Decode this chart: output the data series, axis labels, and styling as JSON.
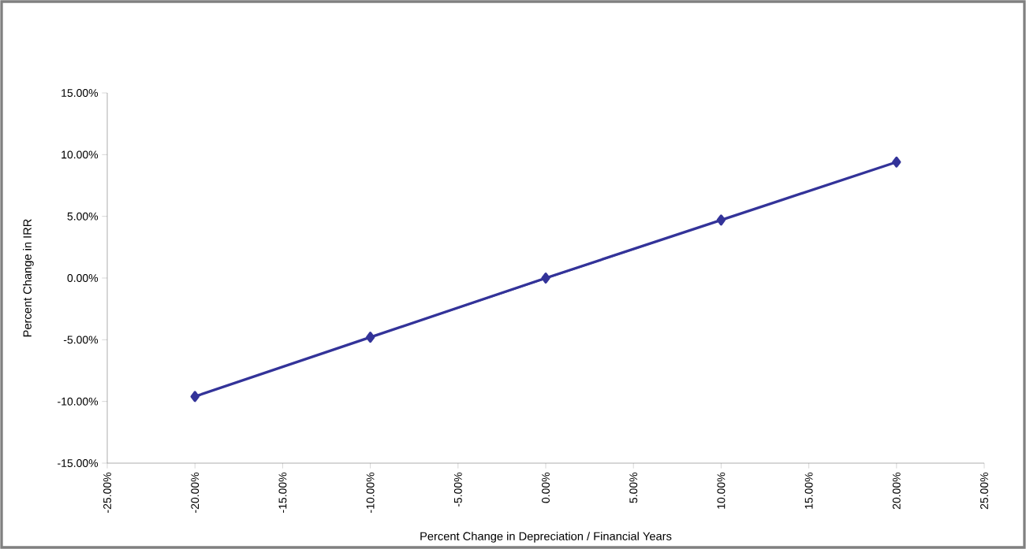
{
  "chart_data": {
    "type": "line",
    "xlabel": "Percent Change in Depreciation / Financial Years",
    "ylabel": "Percent Change in IRR",
    "x": [
      -20,
      -10,
      0,
      10,
      20
    ],
    "values": [
      -9.6,
      -4.8,
      0,
      4.7,
      9.4
    ],
    "color": "#333399",
    "marker": "diamond",
    "line_style": "solid",
    "xlim": [
      -25,
      25
    ],
    "ylim": [
      -15,
      15
    ],
    "xticks": [
      {
        "value": -25,
        "label": "-25.00%"
      },
      {
        "value": -20,
        "label": "-20.00%"
      },
      {
        "value": -15,
        "label": "-15.00%"
      },
      {
        "value": -10,
        "label": "-10.00%"
      },
      {
        "value": -5,
        "label": "-5.00%"
      },
      {
        "value": 0,
        "label": "0.00%"
      },
      {
        "value": 5,
        "label": "5.00%"
      },
      {
        "value": 10,
        "label": "10.00%"
      },
      {
        "value": 15,
        "label": "15.00%"
      },
      {
        "value": 20,
        "label": "20.00%"
      },
      {
        "value": 25,
        "label": "25.00%"
      }
    ],
    "yticks": [
      {
        "value": -15,
        "label": "-15.00%"
      },
      {
        "value": -10,
        "label": "-10.00%"
      },
      {
        "value": -5,
        "label": "-5.00%"
      },
      {
        "value": 0,
        "label": "0.00%"
      },
      {
        "value": 5,
        "label": "5.00%"
      },
      {
        "value": 10,
        "label": "10.00%"
      },
      {
        "value": 15,
        "label": "15.00%"
      }
    ]
  }
}
